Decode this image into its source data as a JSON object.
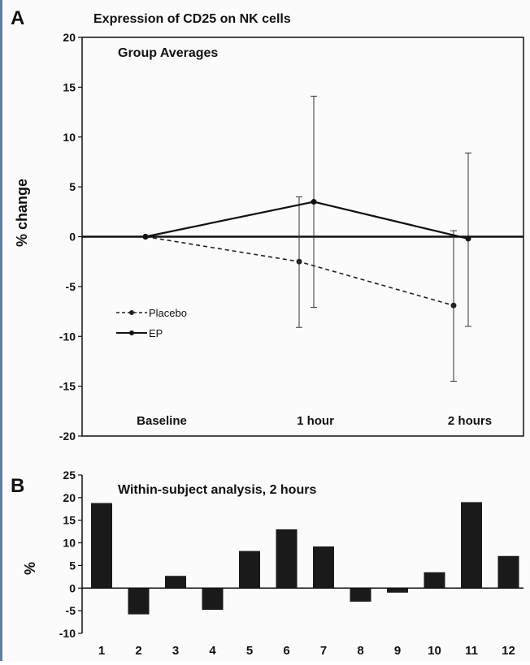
{
  "chart_data": [
    {
      "panel": "A",
      "type": "line",
      "title": "Expression of CD25 on NK cells",
      "subtitle": "Group Averages",
      "ylabel": "% change",
      "xlabel": "",
      "categories": [
        "Baseline",
        "1 hour",
        "2 hours"
      ],
      "ylim": [
        -20,
        20
      ],
      "yticks": [
        20,
        15,
        10,
        5,
        0,
        -5,
        -10,
        -15,
        -20
      ],
      "legend_position": "lower-left",
      "series": [
        {
          "name": "Placebo",
          "style": "dashed",
          "color": "#222222",
          "values": [
            0,
            -2.5,
            -6.9
          ],
          "error_low": [
            0,
            -9.1,
            -14.5
          ],
          "error_high": [
            0,
            4.0,
            0.6
          ]
        },
        {
          "name": "EP",
          "style": "solid",
          "color": "#111111",
          "values": [
            0,
            3.5,
            -0.2
          ],
          "error_low": [
            0,
            -7.1,
            -9.0
          ],
          "error_high": [
            0,
            14.1,
            8.4
          ]
        }
      ]
    },
    {
      "panel": "B",
      "type": "bar",
      "title": "Within-subject analysis, 2 hours",
      "ylabel": "%",
      "xlabel": "",
      "categories": [
        "1",
        "2",
        "3",
        "4",
        "5",
        "6",
        "7",
        "8",
        "9",
        "10",
        "11",
        "12"
      ],
      "values": [
        18.8,
        -5.8,
        2.7,
        -4.8,
        8.2,
        13.0,
        9.2,
        -3.0,
        -1.0,
        3.5,
        19.0,
        7.1
      ],
      "ylim": [
        -10,
        25
      ],
      "yticks": [
        25,
        20,
        15,
        10,
        5,
        0,
        -5,
        -10
      ],
      "color": "#1a1a1a"
    }
  ]
}
